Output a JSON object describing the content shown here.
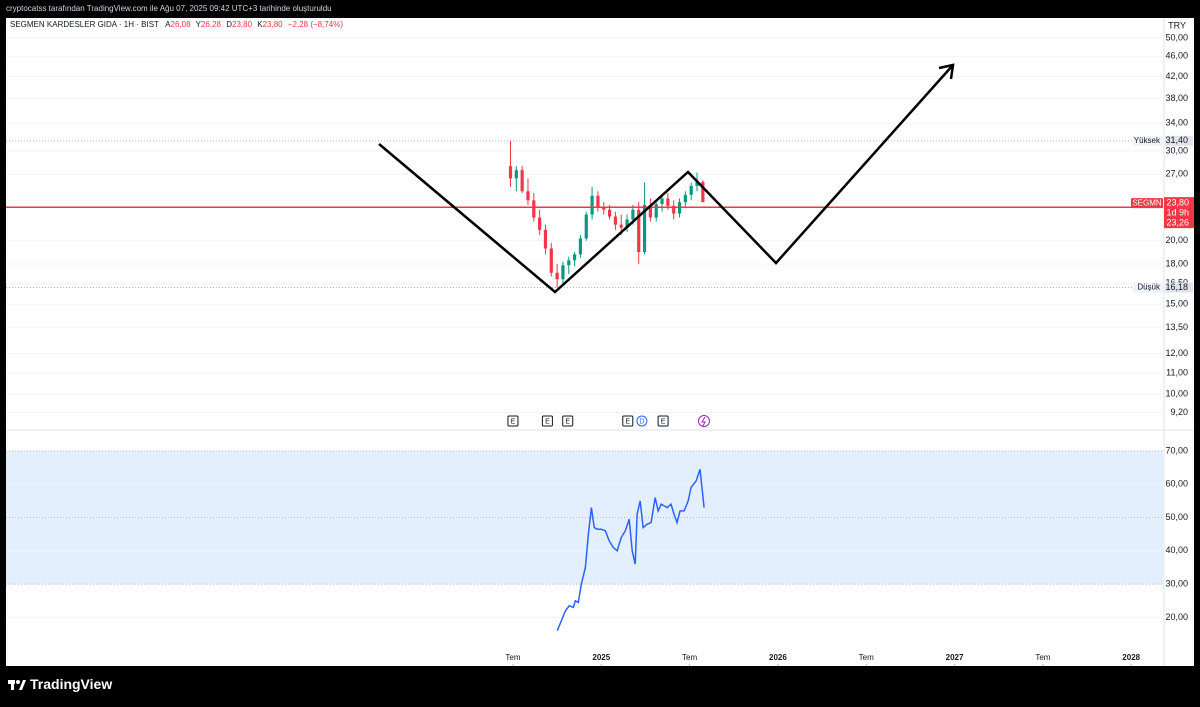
{
  "header": {
    "caption": "cryptocatss tarafından TradingView.com ile Ağu 07, 2025 09:42 UTC+3 tarihinde oluşturuldu"
  },
  "footer": {
    "brand": "TradingView"
  },
  "chart_data": [
    {
      "type": "candlestick",
      "legend": {
        "symbol": "SEGMEN KARDESLER GIDA · 1H · BIST",
        "ohlc": [
          {
            "key": "A",
            "value": "26,08"
          },
          {
            "key": "Y",
            "value": "26,28"
          },
          {
            "key": "D",
            "value": "23,80"
          },
          {
            "key": "K",
            "value": "23,80"
          }
        ],
        "change": "−2,28 (−8,74%)"
      },
      "currency": "TRY",
      "log_scale": true,
      "grid": true,
      "up_color": "#089981",
      "down_color": "#f23645",
      "xlim": [
        2021.63,
        2028.18
      ],
      "ylim": [
        8.5,
        54.7
      ],
      "yticks": [
        {
          "value": 50,
          "label": "50,00"
        },
        {
          "value": 46,
          "label": "46,00"
        },
        {
          "value": 42,
          "label": "42,00"
        },
        {
          "value": 38,
          "label": "38,00"
        },
        {
          "value": 34,
          "label": "34,00"
        },
        {
          "value": 30,
          "label": "30,00"
        },
        {
          "value": 27,
          "label": "27,00"
        },
        {
          "value": 20,
          "label": "20,00"
        },
        {
          "value": 18,
          "label": "18,00"
        },
        {
          "value": 16.5,
          "label": "16,50"
        },
        {
          "value": 15,
          "label": "15,00"
        },
        {
          "value": 13.5,
          "label": "13,50"
        },
        {
          "value": 12,
          "label": "12,00"
        },
        {
          "value": 11,
          "label": "11,00"
        },
        {
          "value": 10,
          "label": "10,00"
        },
        {
          "value": 9.2,
          "label": "9,20"
        }
      ],
      "x": [
        2024.486,
        2024.519,
        2024.552,
        2024.585,
        2024.618,
        2024.651,
        2024.684,
        2024.717,
        2024.75,
        2024.783,
        2024.816,
        2024.849,
        2024.882,
        2024.915,
        2024.948,
        2024.981,
        2025.014,
        2025.047,
        2025.08,
        2025.113,
        2025.146,
        2025.179,
        2025.212,
        2025.245,
        2025.278,
        2025.311,
        2025.344,
        2025.377,
        2025.41,
        2025.443,
        2025.476,
        2025.509,
        2025.542,
        2025.575
      ],
      "open": [
        28.0,
        26.5,
        27.5,
        25.0,
        24.0,
        22.2,
        21.0,
        19.3,
        17.3,
        16.8,
        17.9,
        18.3,
        18.8,
        20.2,
        22.5,
        24.5,
        23.2,
        23.0,
        22.3,
        21.5,
        21.2,
        22.0,
        23.0,
        19.0,
        23.5,
        22.2,
        23.6,
        24.2,
        23.4,
        22.6,
        23.8,
        24.6,
        25.6,
        26.08
      ],
      "high": [
        31.4,
        28.0,
        28.0,
        26.5,
        24.8,
        23.0,
        21.5,
        19.8,
        18.0,
        18.2,
        18.6,
        19.0,
        20.5,
        22.8,
        25.5,
        25.0,
        23.8,
        23.5,
        22.8,
        22.5,
        22.5,
        23.5,
        23.8,
        26.0,
        24.2,
        24.0,
        24.5,
        24.8,
        24.0,
        24.2,
        25.0,
        26.0,
        27.2,
        26.28
      ],
      "low": [
        25.5,
        25.0,
        24.8,
        23.5,
        21.8,
        20.5,
        18.8,
        17.0,
        16.18,
        16.5,
        17.2,
        17.8,
        18.5,
        20.0,
        22.0,
        22.8,
        22.5,
        22.0,
        21.0,
        20.5,
        20.8,
        21.5,
        18.0,
        18.8,
        21.8,
        21.8,
        22.8,
        23.0,
        22.0,
        22.2,
        23.2,
        24.0,
        25.0,
        23.8
      ],
      "close": [
        26.5,
        27.5,
        25.0,
        24.0,
        22.2,
        21.0,
        19.3,
        17.3,
        16.8,
        17.9,
        18.3,
        18.8,
        20.2,
        22.5,
        24.5,
        23.2,
        23.0,
        22.3,
        21.5,
        21.2,
        22.0,
        23.0,
        19.0,
        23.5,
        22.2,
        23.6,
        24.2,
        23.4,
        22.6,
        23.8,
        24.6,
        25.6,
        26.08,
        23.8
      ],
      "high_line": {
        "name": "Yüksek",
        "value": 31.4,
        "label": "31,40"
      },
      "low_line": {
        "name": "Düşük",
        "value": 16.18,
        "label": "16,18"
      },
      "price_line": {
        "symbol": "SEGMN",
        "last": {
          "value": 23.8,
          "label": "23,80"
        },
        "countdown": "1d 9h",
        "line": {
          "value": 23.26,
          "label": "23,26"
        },
        "color": "#f23645"
      },
      "events": [
        {
          "x": 2024.5,
          "label": "E"
        },
        {
          "x": 2024.695,
          "label": "E"
        },
        {
          "x": 2024.81,
          "label": "E"
        },
        {
          "x": 2025.15,
          "label": "E"
        },
        {
          "x": 2025.23,
          "label": "D"
        },
        {
          "x": 2025.35,
          "label": "E"
        }
      ]
    },
    {
      "type": "line",
      "color": "#2962ff",
      "grid": true,
      "band": [
        30,
        70
      ],
      "band_color": "#e3effd",
      "midline": 50,
      "xlim": [
        2021.63,
        2028.18
      ],
      "xticks": [
        {
          "value": 2024.5,
          "label": "Tem"
        },
        2025,
        {
          "value": 2025.5,
          "label": "Tem"
        },
        2026,
        {
          "value": 2026.5,
          "label": "Tem"
        },
        2027,
        {
          "value": 2027.5,
          "label": "Tem"
        },
        2028
      ],
      "ylim": [
        6,
        76.3
      ],
      "yticks": [
        {
          "value": 70,
          "label": "70,00"
        },
        {
          "value": 60,
          "label": "60,00"
        },
        {
          "value": 50,
          "label": "50,00"
        },
        {
          "value": 40,
          "label": "40,00"
        },
        {
          "value": 30,
          "label": "30,00"
        },
        {
          "value": 20,
          "label": "20,00"
        }
      ],
      "x": [
        2024.751,
        2024.774,
        2024.797,
        2024.819,
        2024.842,
        2024.853,
        2024.87,
        2024.887,
        2024.91,
        2024.927,
        2024.944,
        2024.96,
        2024.977,
        2025.0,
        2025.023,
        2025.045,
        2025.068,
        2025.09,
        2025.113,
        2025.136,
        2025.158,
        2025.175,
        2025.192,
        2025.203,
        2025.22,
        2025.237,
        2025.26,
        2025.282,
        2025.305,
        2025.322,
        2025.339,
        2025.356,
        2025.373,
        2025.395,
        2025.412,
        2025.429,
        2025.446,
        2025.469,
        2025.492,
        2025.508,
        2025.537,
        2025.559,
        2025.582
      ],
      "values": [
        16,
        19,
        22,
        23.5,
        23,
        25,
        24.5,
        30,
        35,
        45,
        53,
        47,
        46.5,
        46.5,
        46,
        43,
        41,
        40,
        44,
        46,
        49.5,
        40,
        36,
        51,
        55,
        47,
        48,
        48.5,
        56,
        52,
        54,
        53.5,
        53,
        54,
        51,
        48.5,
        52,
        52,
        55,
        59,
        61,
        64.5,
        53
      ]
    }
  ]
}
